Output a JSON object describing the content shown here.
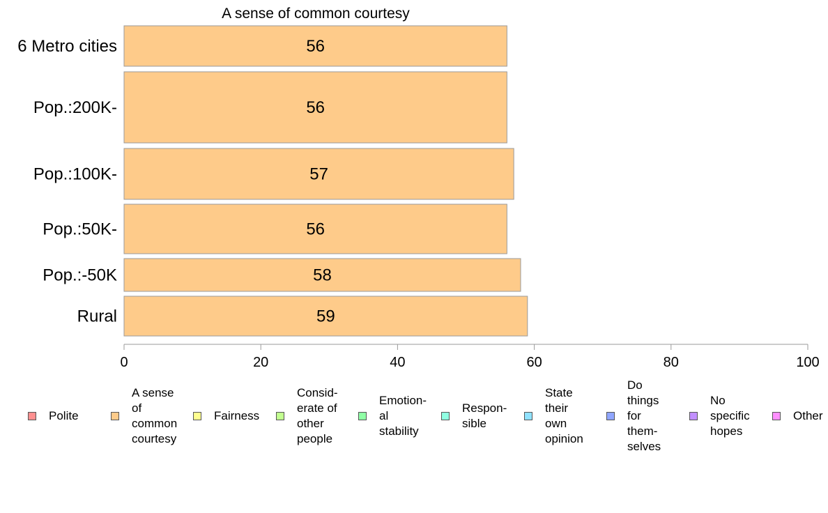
{
  "chart_data": {
    "type": "bar",
    "orientation": "horizontal",
    "title": "A sense of common courtesy",
    "categories": [
      "6 Metro cities",
      "Pop.:200K-",
      "Pop.:100K-",
      "Pop.:50K-",
      "Pop.:-50K",
      "Rural"
    ],
    "values": [
      56,
      56,
      57,
      56,
      58,
      59
    ],
    "data_labels": [
      "56",
      "56",
      "57",
      "56",
      "58",
      "59"
    ],
    "bar_color": "#FECB8A",
    "xlim": [
      0,
      100
    ],
    "xticks": [
      0,
      20,
      40,
      60,
      80,
      100
    ],
    "xtick_labels": [
      "0",
      "20",
      "40",
      "60",
      "80",
      "100"
    ],
    "grid": false,
    "legend_placement": "bottom",
    "legend": [
      {
        "name": "Polite",
        "color": "#FF9090"
      },
      {
        "name": "A sense\nof\ncommon\ncourtesy",
        "color": "#FECB8A"
      },
      {
        "name": "Fairness",
        "color": "#FFFF90"
      },
      {
        "name": "Consid-\nerate of\nother\npeople",
        "color": "#C2FF90"
      },
      {
        "name": "Emotion-\nal\nstability",
        "color": "#90FFA6"
      },
      {
        "name": "Respon-\nsible",
        "color": "#90FFE2"
      },
      {
        "name": "State\ntheir\nown\nopinion",
        "color": "#90E2FF"
      },
      {
        "name": "Do\nthings\nfor\nthem-\nselves",
        "color": "#90A6FF"
      },
      {
        "name": "No\nspecific\nhopes",
        "color": "#C290FF"
      },
      {
        "name": "Other",
        "color": "#FF90FF"
      }
    ]
  }
}
